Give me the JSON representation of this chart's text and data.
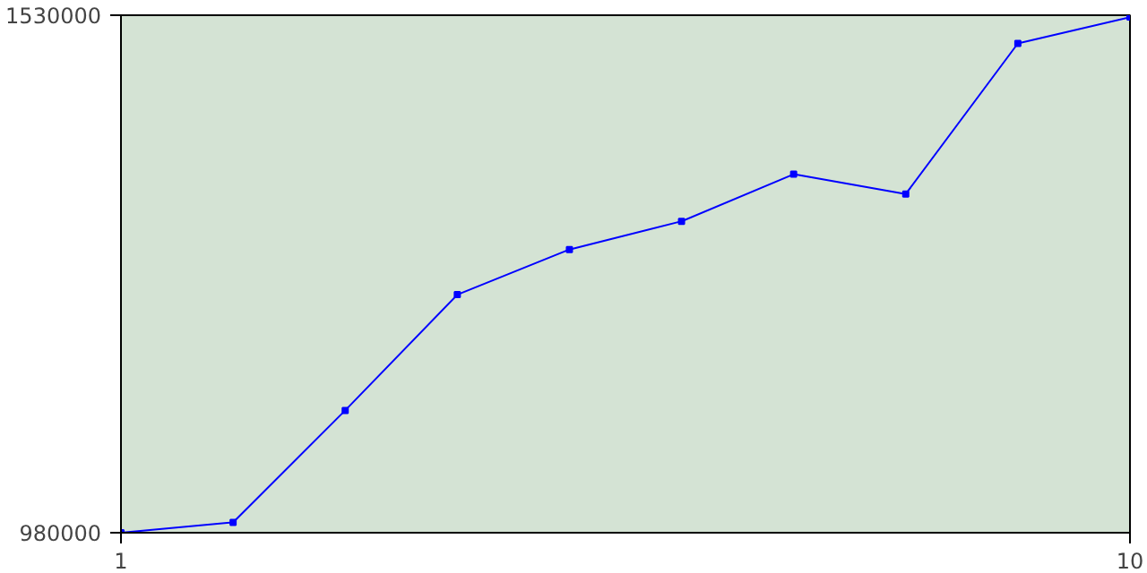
{
  "chart_data": {
    "type": "line",
    "x": [
      1,
      2,
      3,
      4,
      5,
      6,
      7,
      8,
      9,
      10
    ],
    "series": [
      {
        "color": "#0000ff",
        "values": [
          980000,
          991000,
          1110000,
          1233000,
          1281000,
          1311000,
          1361000,
          1340000,
          1500000,
          1528000
        ]
      }
    ],
    "xlim": [
      1,
      10
    ],
    "xticks": [
      1,
      10
    ],
    "ylim": [
      980000,
      1530000
    ],
    "yticks": [
      980000,
      1530000
    ],
    "marker": "square",
    "line_style": "solid"
  }
}
